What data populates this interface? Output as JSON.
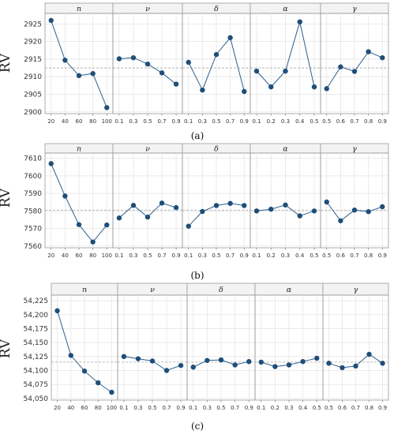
{
  "chart_data": [
    {
      "type": "line",
      "caption": "(a)",
      "ylabel": "RV",
      "ylim": [
        2899.5,
        2928
      ],
      "yticks": [
        2900,
        2905,
        2910,
        2915,
        2920,
        2925
      ],
      "ytick_labels": [
        "2900",
        "2905",
        "2910",
        "2915",
        "2920",
        "2925"
      ],
      "reference_line": 2912.5,
      "grid": true,
      "panels": [
        {
          "label": "n",
          "x": [
            "20",
            "40",
            "60",
            "80",
            "100"
          ],
          "values": [
            2926,
            2914.7,
            2910.3,
            2910.9,
            2901.2
          ]
        },
        {
          "label": "ν",
          "x": [
            "0.1",
            "0.3",
            "0.5",
            "0.7",
            "0.9"
          ],
          "values": [
            2915.1,
            2915.4,
            2913.6,
            2911.1,
            2907.9
          ]
        },
        {
          "label": "δ",
          "x": [
            "0.1",
            "0.3",
            "0.5",
            "0.7",
            "0.9"
          ],
          "values": [
            2914.1,
            2906.2,
            2916.3,
            2921.1,
            2905.8
          ]
        },
        {
          "label": "α",
          "x": [
            "0.1",
            "0.2",
            "0.3",
            "0.4",
            "0.5"
          ],
          "values": [
            2911.6,
            2907.1,
            2911.6,
            2925.6,
            2907.1
          ]
        },
        {
          "label": "γ",
          "x": [
            "0.5",
            "0.6",
            "0.7",
            "0.8",
            "0.9"
          ],
          "values": [
            2906.6,
            2912.8,
            2911.5,
            2917.1,
            2915.4
          ]
        }
      ]
    },
    {
      "type": "line",
      "caption": "(b)",
      "ylabel": "RV",
      "ylim": [
        7559,
        7613
      ],
      "yticks": [
        7560,
        7570,
        7580,
        7590,
        7600,
        7610
      ],
      "ytick_labels": [
        "7560",
        "7570",
        "7580",
        "7590",
        "7600",
        "7610"
      ],
      "reference_line": 7580.5,
      "grid": true,
      "panels": [
        {
          "label": "n",
          "x": [
            "20",
            "40",
            "60",
            "80",
            "100"
          ],
          "values": [
            7607,
            7588.5,
            7572.2,
            7562.3,
            7572
          ]
        },
        {
          "label": "ν",
          "x": [
            "0.1",
            "0.3",
            "0.5",
            "0.7",
            "0.9"
          ],
          "values": [
            7576,
            7583.2,
            7576.5,
            7584.5,
            7581.9
          ]
        },
        {
          "label": "δ",
          "x": [
            "0.1",
            "0.3",
            "0.5",
            "0.7",
            "0.9"
          ],
          "values": [
            7571.3,
            7579.7,
            7583.1,
            7584.3,
            7583.1
          ]
        },
        {
          "label": "α",
          "x": [
            "0.1",
            "0.2",
            "0.3",
            "0.4",
            "0.5"
          ],
          "values": [
            7580,
            7581,
            7583.4,
            7577.2,
            7580
          ]
        },
        {
          "label": "γ",
          "x": [
            "0.5",
            "0.6",
            "0.7",
            "0.8",
            "0.9"
          ],
          "values": [
            7585.1,
            7574.4,
            7580.5,
            7579.6,
            7582.4
          ]
        }
      ]
    },
    {
      "type": "line",
      "caption": "(c)",
      "ylabel": "RV",
      "ylim": [
        54047,
        54235
      ],
      "yticks": [
        54050,
        54075,
        54100,
        54125,
        54150,
        54175,
        54200,
        54225
      ],
      "ytick_labels": [
        "54,050",
        "54,075",
        "54,100",
        "54,125",
        "54,150",
        "54,175",
        "54,200",
        "54,225"
      ],
      "reference_line": 54115,
      "grid": true,
      "panels": [
        {
          "label": "n",
          "x": [
            "20",
            "40",
            "60",
            "80",
            "100"
          ],
          "values": [
            54207,
            54127,
            54099,
            54078,
            54061
          ]
        },
        {
          "label": "ν",
          "x": [
            "0.1",
            "0.3",
            "0.5",
            "0.7",
            "0.9"
          ],
          "values": [
            54125,
            54121,
            54117,
            54100,
            54109
          ]
        },
        {
          "label": "δ",
          "x": [
            "0.1",
            "0.3",
            "0.5",
            "0.7",
            "0.9"
          ],
          "values": [
            54106,
            54118,
            54119,
            54110,
            54116
          ]
        },
        {
          "label": "α",
          "x": [
            "0.1",
            "0.2",
            "0.3",
            "0.4",
            "0.5"
          ],
          "values": [
            54115,
            54107,
            54110,
            54116,
            54122
          ]
        },
        {
          "label": "γ",
          "x": [
            "0.5",
            "0.6",
            "0.7",
            "0.8",
            "0.9"
          ],
          "values": [
            54113,
            54105,
            54108,
            54129,
            54113
          ]
        }
      ]
    }
  ],
  "colors": {
    "line": "#2c5f8e",
    "marker": "#1f4e79",
    "strip_bg": "#f3f3f3",
    "panel_border": "#9a9a9a",
    "grid": "#e6e6e6",
    "reference": "#a8a8a8"
  }
}
